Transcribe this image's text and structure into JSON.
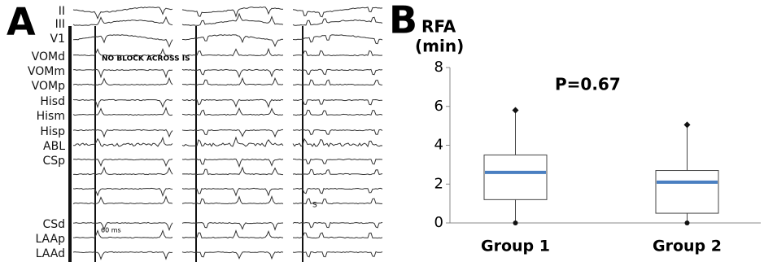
{
  "panel_a": {
    "label": "A",
    "channels": [
      "II",
      "III",
      "V1",
      "VOMd",
      "VOMm",
      "VOMp",
      "Hisd",
      "Hism",
      "Hisp",
      "ABL",
      "CSp",
      "CSd",
      "LAAp",
      "LAAd"
    ],
    "annotations": [
      "NO BLOCK ACROSS IS",
      "60 ms",
      "S"
    ]
  },
  "chart_data": {
    "type": "box",
    "panel_label": "B",
    "y_label": [
      "RFA",
      "(min)"
    ],
    "annotation": "P=0.67",
    "categories": [
      "Group 1",
      "Group 2"
    ],
    "boxes": [
      {
        "min": 0,
        "q1": 1.2,
        "median": 2.6,
        "q3": 3.5,
        "max": 5.8
      },
      {
        "min": 0,
        "q1": 0.5,
        "median": 2.1,
        "q3": 2.7,
        "max": 5.05
      }
    ],
    "median_color": "#4a7fc1",
    "ylim": [
      0,
      8
    ],
    "yticks": [
      0,
      2,
      4,
      6,
      8
    ]
  }
}
